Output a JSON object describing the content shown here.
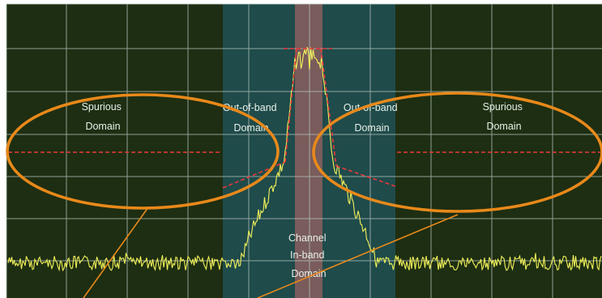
{
  "labels": {
    "spurious_left": [
      "Spurious",
      "Domain"
    ],
    "oob_left": [
      "Out-of-band",
      "Domain"
    ],
    "oob_right": [
      "Out-of-band",
      "Domain"
    ],
    "spurious_right": [
      "Spurious",
      "Domain"
    ],
    "channel": [
      "Channel",
      "In-band",
      "Domain"
    ]
  },
  "colors": {
    "screen_bg": "#1e2e12",
    "oob_band": "#1f4b4a",
    "channel_band": "#8a5f5e",
    "grid": "#b8c6c0",
    "trace": "#f2f25a",
    "mask": "#e8383a",
    "ellipse": "#e8891a"
  }
}
